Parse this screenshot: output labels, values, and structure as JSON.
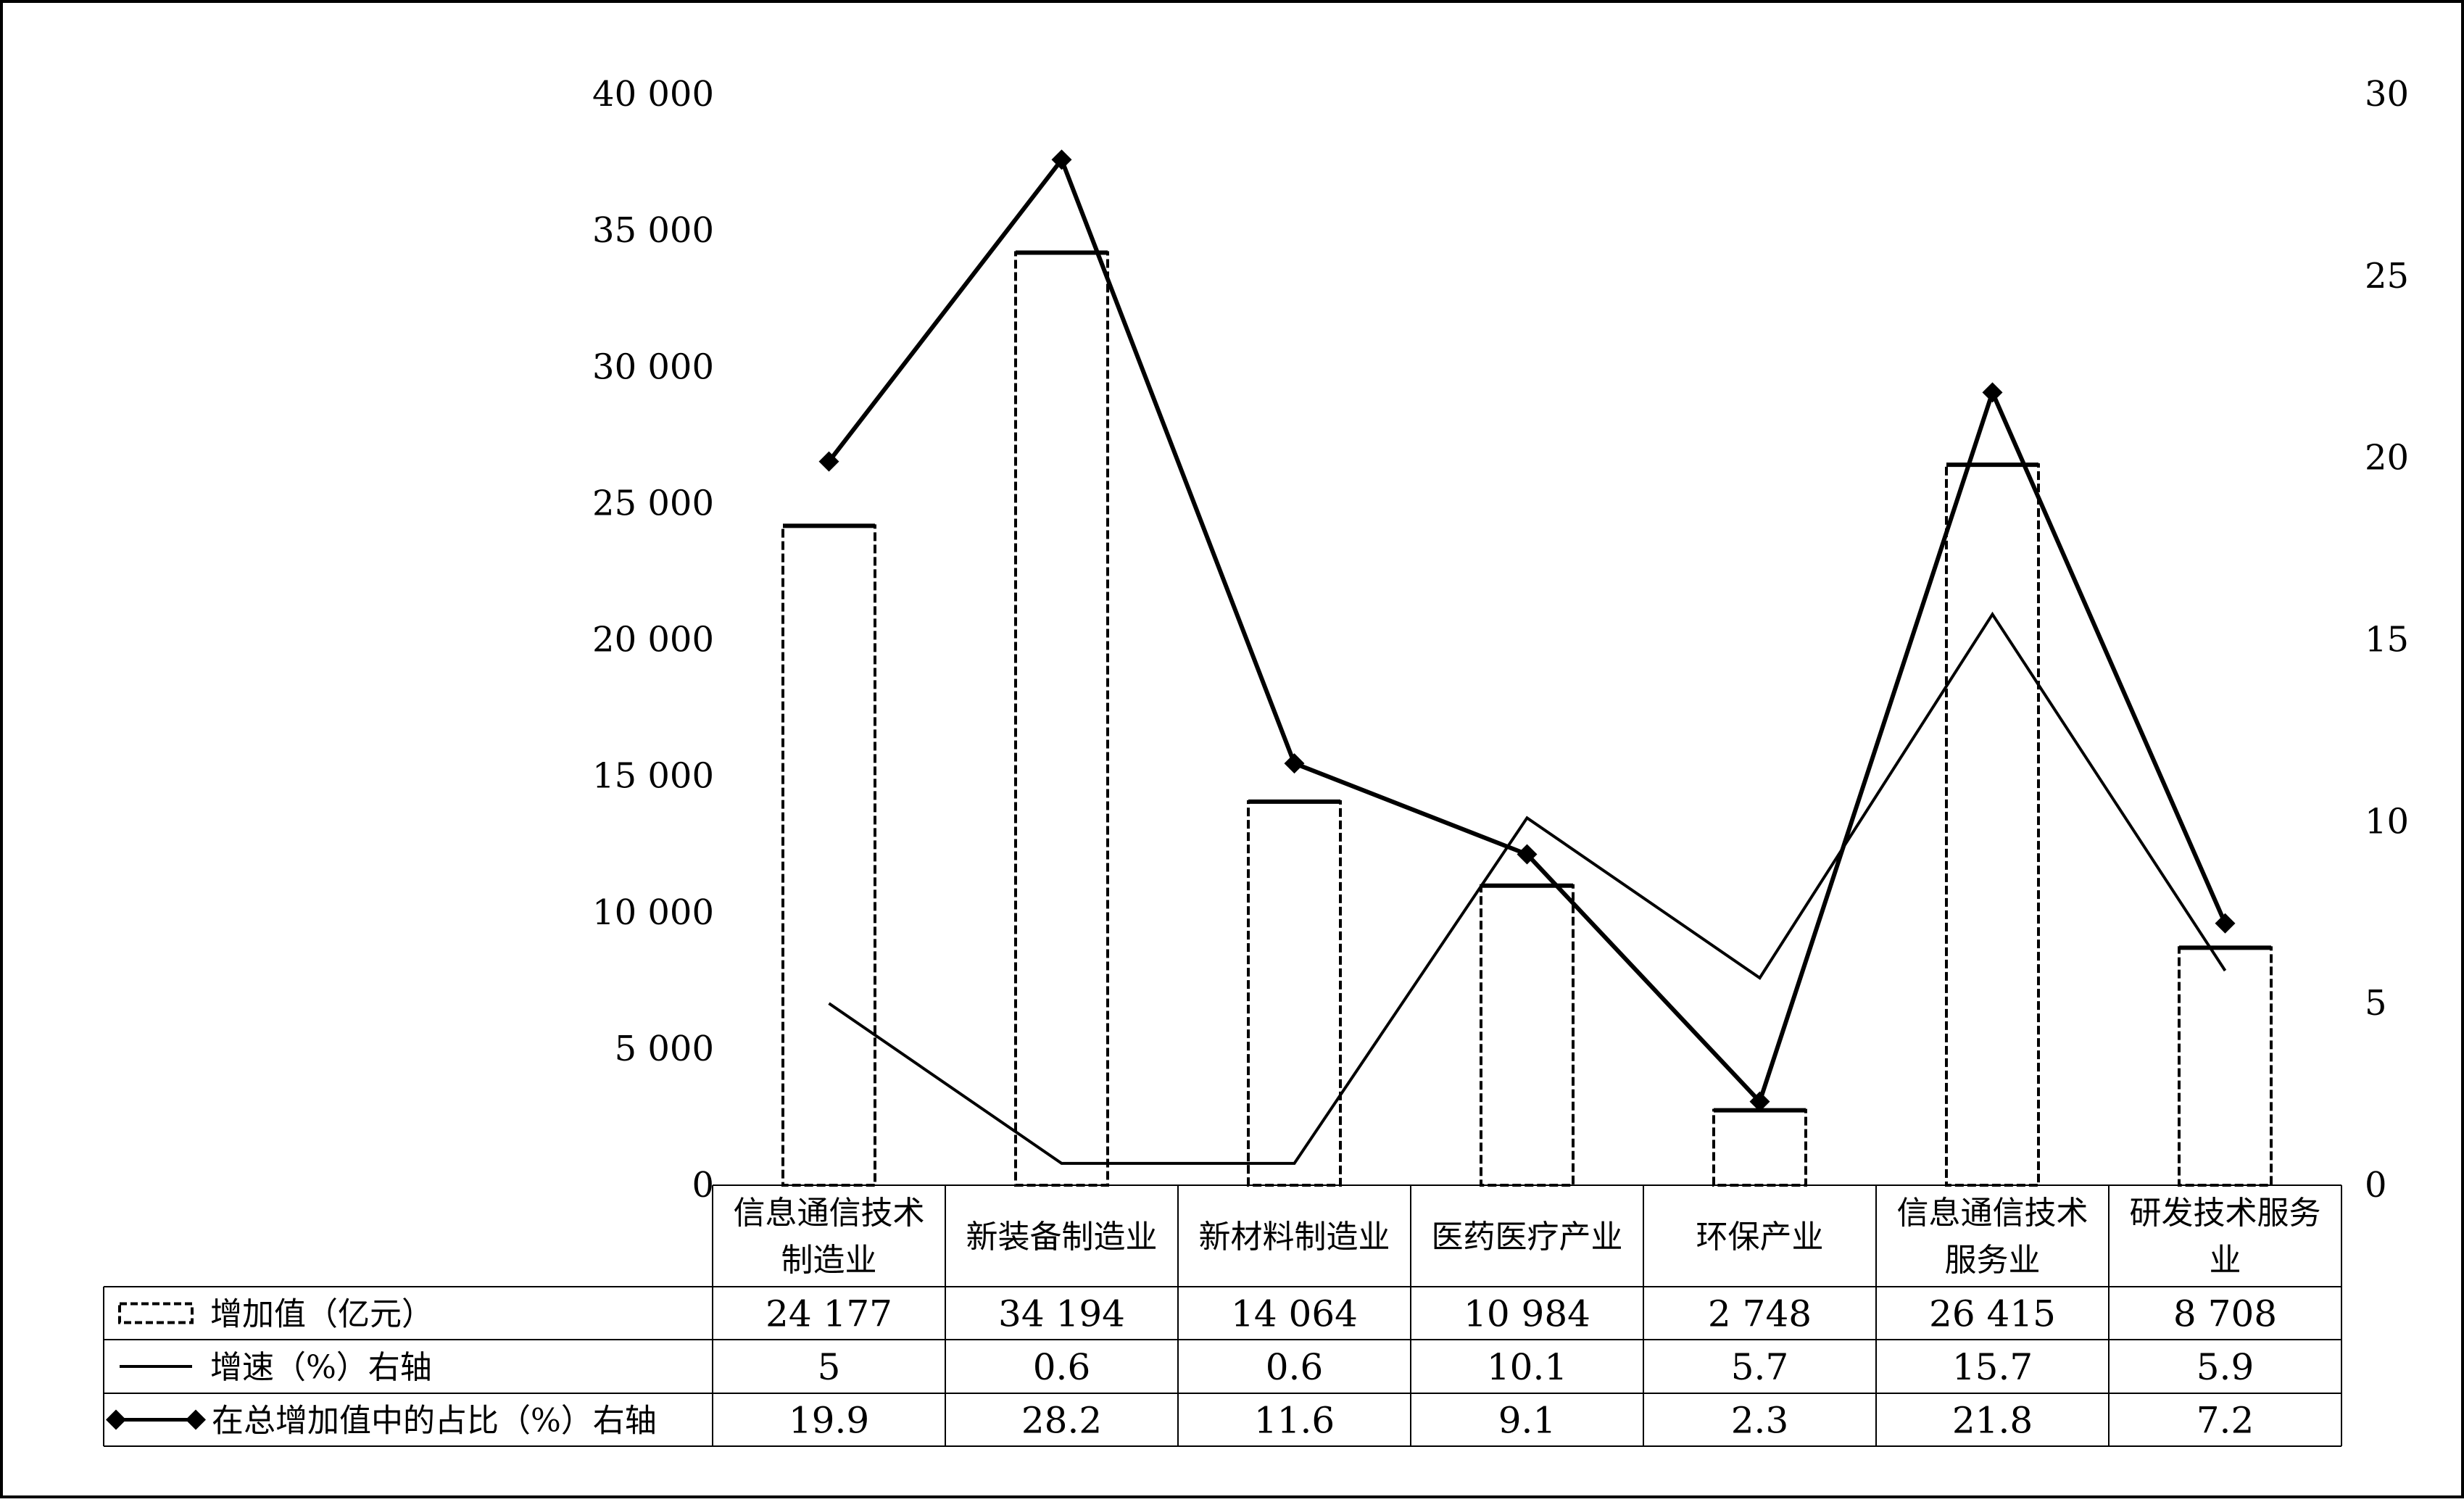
{
  "chart_data": {
    "type": "bar",
    "categories": [
      [
        "信息通信技术",
        "制造业"
      ],
      [
        "新装备制造业"
      ],
      [
        "新材料制造业"
      ],
      [
        "医药医疗产业"
      ],
      [
        "环保产业"
      ],
      [
        "信息通信技术",
        "服务业"
      ],
      [
        "研发技术服务",
        "业"
      ]
    ],
    "series": [
      {
        "name": "增加值（亿元）",
        "kind": "bar",
        "axis": "left",
        "values": [
          24177,
          34194,
          14064,
          10984,
          2748,
          26415,
          8708
        ],
        "table_values": [
          "24 177",
          "34 194",
          "14 064",
          "10 984",
          "2 748",
          "26 415",
          "8 708"
        ]
      },
      {
        "name": "增速（%）右轴",
        "kind": "line",
        "axis": "right",
        "values": [
          5,
          0.6,
          0.6,
          10.1,
          5.7,
          15.7,
          5.9
        ],
        "table_values": [
          "5",
          "0.6",
          "0.6",
          "10.1",
          "5.7",
          "15.7",
          "5.9"
        ]
      },
      {
        "name": "在总增加值中的占比（%）右轴",
        "kind": "line-marker",
        "axis": "right",
        "values": [
          19.9,
          28.2,
          11.6,
          9.1,
          2.3,
          21.8,
          7.2
        ],
        "table_values": [
          "19.9",
          "28.2",
          "11.6",
          "9.1",
          "2.3",
          "21.8",
          "7.2"
        ]
      }
    ],
    "y_left": {
      "ylim": [
        0,
        40000
      ],
      "ticks": [
        0,
        5000,
        10000,
        15000,
        20000,
        25000,
        30000,
        35000,
        40000
      ],
      "tick_labels": [
        "0",
        "5 000",
        "10 000",
        "15 000",
        "20 000",
        "25 000",
        "30 000",
        "35 000",
        "40 000"
      ]
    },
    "y_right": {
      "ylim": [
        0,
        30
      ],
      "ticks": [
        0,
        5,
        10,
        15,
        20,
        25,
        30
      ],
      "tick_labels": [
        "0",
        "5",
        "10",
        "15",
        "20",
        "25",
        "30"
      ]
    },
    "data_table": true,
    "grid": false,
    "legend": "data-table-left"
  }
}
